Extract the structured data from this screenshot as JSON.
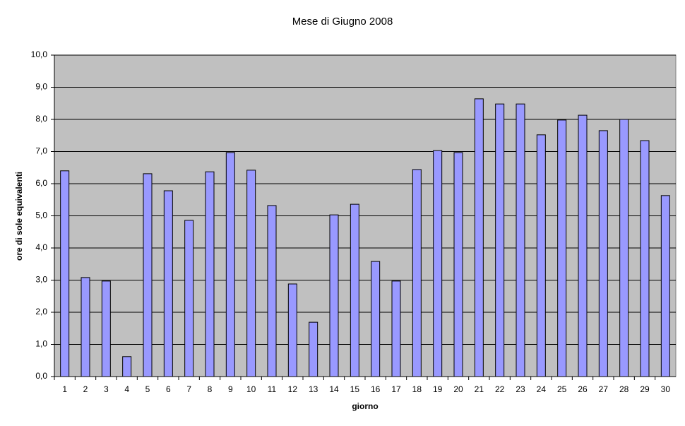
{
  "chart_data": {
    "type": "bar",
    "title": "Mese di Giugno 2008",
    "x_label": "giorno",
    "y_label": "ore di sole equivalenti",
    "categories": [
      "1",
      "2",
      "3",
      "4",
      "5",
      "6",
      "7",
      "8",
      "9",
      "10",
      "11",
      "12",
      "13",
      "14",
      "15",
      "16",
      "17",
      "18",
      "19",
      "20",
      "21",
      "22",
      "23",
      "24",
      "25",
      "26",
      "27",
      "28",
      "29",
      "30"
    ],
    "values": [
      6.4,
      3.08,
      2.97,
      0.62,
      6.31,
      5.78,
      4.86,
      6.37,
      6.97,
      6.42,
      5.32,
      2.88,
      1.69,
      5.03,
      5.36,
      3.58,
      2.97,
      6.44,
      7.03,
      6.97,
      8.64,
      8.48,
      8.48,
      7.52,
      7.98,
      8.13,
      7.65,
      8.0,
      7.34,
      5.63
    ],
    "color": "#9999ff",
    "ylim": [
      0,
      10
    ],
    "yticks": [
      {
        "value": 0,
        "label": "0,0"
      },
      {
        "value": 1,
        "label": "1,0"
      },
      {
        "value": 2,
        "label": "2,0"
      },
      {
        "value": 3,
        "label": "3,0"
      },
      {
        "value": 4,
        "label": "4,0"
      },
      {
        "value": 5,
        "label": "5,0"
      },
      {
        "value": 6,
        "label": "6,0"
      },
      {
        "value": 7,
        "label": "7,0"
      },
      {
        "value": 8,
        "label": "8,0"
      },
      {
        "value": 9,
        "label": "9,0"
      },
      {
        "value": 10,
        "label": "10,0"
      }
    ],
    "grid": true,
    "plot_background": "#c0c0c0"
  }
}
